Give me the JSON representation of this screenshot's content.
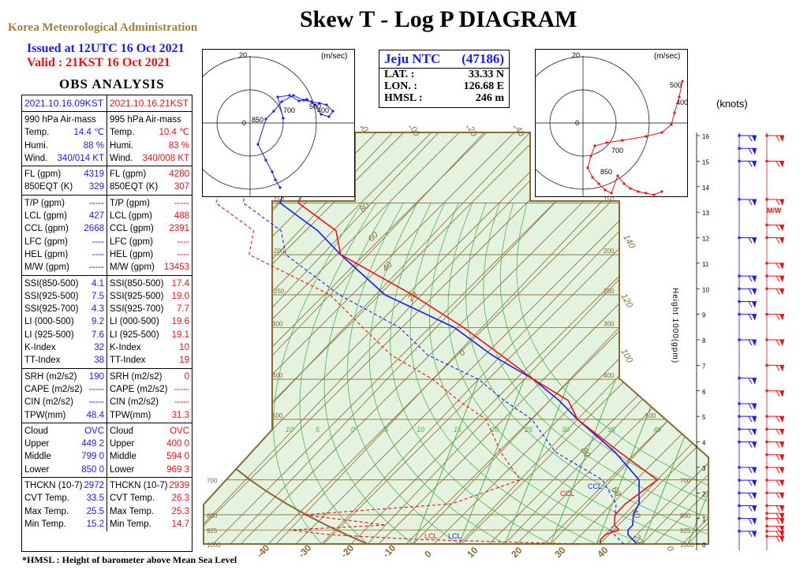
{
  "header": {
    "agency": "Korea Meteorological Administration",
    "title": "Skew T - Log P DIAGRAM",
    "issued": "Issued at 12UTC 16 Oct 2021",
    "valid": "Valid :  21KST 16 Oct 2021",
    "obs_title": "OBS  ANALYSIS",
    "footnote": "*HMSL : Height of barometer above Mean Sea Level"
  },
  "station": {
    "name": "Jeju NTC",
    "id": "(47186)",
    "rows": [
      {
        "label": "LAT.  :",
        "value": "33.33 N"
      },
      {
        "label": "LON.  :",
        "value": "126.68 E"
      },
      {
        "label": "HMSL  :",
        "value": "246 m"
      }
    ]
  },
  "obs": {
    "left": {
      "date": "2021.10.16.09KST",
      "color": "#1a1aff",
      "groups": [
        [
          [
            "990  hPa Air-mass",
            ""
          ],
          [
            "Temp.",
            "14.4 ℃"
          ],
          [
            "Humi.",
            "88  %"
          ],
          [
            "Wind.",
            "340/014 KT"
          ]
        ],
        [
          [
            "FL (gpm)",
            "4319"
          ],
          [
            "850EQT (K)",
            "329"
          ]
        ],
        [
          [
            "T/P (gpm)",
            "-----"
          ],
          [
            "LCL (gpm)",
            "427"
          ],
          [
            "CCL (gpm)",
            "2668"
          ],
          [
            "LFC (gpm)",
            "----"
          ],
          [
            "HEL (gpm)",
            "----"
          ],
          [
            "M/W (gpm)",
            "-----"
          ]
        ],
        [
          [
            "SSI(850-500)",
            "4.1"
          ],
          [
            "SSI(925-500)",
            "7.5"
          ],
          [
            "SSI(925-700)",
            "4.3"
          ],
          [
            "LI (000-500)",
            "9.2"
          ],
          [
            "LI (925-500)",
            "7.6"
          ],
          [
            "K-Index",
            "32"
          ],
          [
            "TT-Index",
            "38"
          ]
        ],
        [
          [
            "SRH (m2/s2)",
            "190"
          ],
          [
            "CAPE (m2/s2)",
            "-----"
          ],
          [
            "CIN (m2/s2)",
            "-----"
          ],
          [
            "TPW(mm)",
            "48.4"
          ]
        ],
        [
          [
            "Cloud",
            "OVC"
          ],
          [
            "Upper",
            "449    2"
          ],
          [
            "Middle",
            "799    0"
          ],
          [
            "Lower",
            "850    0"
          ]
        ],
        [
          [
            "THCKN (10-7)",
            "2972"
          ],
          [
            "CVT Temp.",
            "33.5"
          ],
          [
            "Max Temp.",
            "25.5"
          ],
          [
            "Min Temp.",
            "15.2"
          ]
        ]
      ]
    },
    "right": {
      "date": "2021.10.16.21KST",
      "color": "#ee1111",
      "groups": [
        [
          [
            "995  hPa Air-mass",
            ""
          ],
          [
            "Temp.",
            "10.4 ℃"
          ],
          [
            "Humi.",
            "83  %"
          ],
          [
            "Wind.",
            "340/008 KT"
          ]
        ],
        [
          [
            "FL (gpm)",
            "4280"
          ],
          [
            "850EQT (K)",
            "307"
          ]
        ],
        [
          [
            "T/P (gpm)",
            "-----"
          ],
          [
            "LCL (gpm)",
            "488"
          ],
          [
            "CCL (gpm)",
            "2391"
          ],
          [
            "LFC (gpm)",
            "----"
          ],
          [
            "HEL (gpm)",
            "----"
          ],
          [
            "M/W (gpm)",
            "13453"
          ]
        ],
        [
          [
            "SSI(850-500)",
            "17.4"
          ],
          [
            "SSI(925-500)",
            "19.0"
          ],
          [
            "SSI(925-700)",
            "7.7"
          ],
          [
            "LI (000-500)",
            "19.6"
          ],
          [
            "LI (925-500)",
            "19.1"
          ],
          [
            "K-Index",
            "10"
          ],
          [
            "TT-Index",
            "19"
          ]
        ],
        [
          [
            "SRH (m2/s2)",
            "0"
          ],
          [
            "CAPE (m2/s2)",
            "-----"
          ],
          [
            "CIN (m2/s2)",
            "-----"
          ],
          [
            "TPW(mm)",
            "31.3"
          ]
        ],
        [
          [
            "Cloud",
            "OVC"
          ],
          [
            "Upper",
            "400    0"
          ],
          [
            "Middle",
            "594    0"
          ],
          [
            "Lower",
            "969    3"
          ]
        ],
        [
          [
            "THCKN (10-7)",
            "2939"
          ],
          [
            "CVT Temp.",
            "26.3"
          ],
          [
            "Max Temp.",
            "25.3"
          ],
          [
            "Min Temp.",
            "14.7"
          ]
        ]
      ]
    }
  },
  "hodographs": {
    "unit": "(m/sec)",
    "ring_label": "20",
    "center_label": "0",
    "left_levels": [
      "850",
      "700",
      "500",
      "400"
    ],
    "right_levels": [
      "500",
      "400",
      "700",
      "850"
    ]
  },
  "wind_panel": {
    "unit": "(knots)",
    "height_labels": [
      "16",
      "15",
      "14",
      "13",
      "12",
      "11",
      "10",
      "9",
      "8",
      "7",
      "6",
      "5",
      "4",
      "3",
      "2",
      "1",
      "0"
    ],
    "mw_label": "M/W",
    "axis_title": "Height  1000(gpm)"
  },
  "chart_data": {
    "type": "line",
    "title": "Skew T - Log P DIAGRAM",
    "x_axis": {
      "label": "",
      "ticks": [
        -40,
        -30,
        -20,
        -10,
        0,
        10,
        20,
        30,
        40
      ]
    },
    "y_axis": {
      "label": "",
      "scale": "log",
      "pressure_ticks": [
        150,
        200,
        250,
        300,
        400,
        500,
        700,
        850,
        925,
        1000
      ]
    },
    "mixing_ratio_labels": [
      "10",
      "5",
      "0",
      "5",
      "10",
      "15",
      "20",
      "25",
      "30",
      "35",
      "40"
    ],
    "theta_labels": [
      "80",
      "60",
      "40",
      "20",
      "0"
    ],
    "adiabat_labels": [
      "140",
      "120",
      "100",
      "80",
      "60",
      "40",
      "20",
      "0"
    ],
    "top_labels": [
      "80",
      "100",
      "120",
      "140"
    ],
    "lcl_label": "LCL",
    "ccl_label": "CCL",
    "colors": {
      "obs_09": "#1a1aff",
      "obs_21": "#ee1111",
      "grid": "#8a6a33",
      "moist": "#55b055",
      "fill": "#e3f3df"
    },
    "series": [
      {
        "color": "#1a1aff",
        "style": "temperature",
        "points": [
          [
            1000,
            14.4
          ],
          [
            975,
            13.5
          ],
          [
            950,
            12.5
          ],
          [
            925,
            12
          ],
          [
            900,
            12
          ],
          [
            850,
            11
          ],
          [
            800,
            10.5
          ],
          [
            700,
            8
          ],
          [
            600,
            2.5
          ],
          [
            500,
            -5
          ],
          [
            450,
            -9
          ],
          [
            400,
            -14
          ],
          [
            350,
            -21
          ],
          [
            300,
            -28
          ],
          [
            250,
            -39
          ],
          [
            200,
            -48
          ],
          [
            175,
            -53
          ],
          [
            150,
            -60
          ],
          [
            125,
            -62
          ],
          [
            110,
            -64
          ],
          [
            100,
            -64
          ]
        ]
      },
      {
        "color": "#1a1aff",
        "style": "dewpoint",
        "points": [
          [
            1000,
            13
          ],
          [
            975,
            12
          ],
          [
            950,
            11
          ],
          [
            925,
            10
          ],
          [
            900,
            10
          ],
          [
            850,
            9
          ],
          [
            800,
            8
          ],
          [
            700,
            4
          ],
          [
            600,
            -4
          ],
          [
            500,
            -10
          ],
          [
            450,
            -15
          ],
          [
            400,
            -20
          ],
          [
            350,
            -28
          ],
          [
            300,
            -34
          ],
          [
            250,
            -44
          ],
          [
            200,
            -54
          ],
          [
            175,
            -57
          ],
          [
            150,
            -64
          ],
          [
            125,
            -67
          ],
          [
            110,
            -69
          ],
          [
            100,
            -70
          ]
        ]
      },
      {
        "color": "#ee1111",
        "style": "temperature",
        "points": [
          [
            1000,
            10.4
          ],
          [
            975,
            10
          ],
          [
            950,
            10
          ],
          [
            925,
            11
          ],
          [
            900,
            10
          ],
          [
            850,
            9
          ],
          [
            800,
            9
          ],
          [
            700,
            10
          ],
          [
            600,
            3
          ],
          [
            500,
            -5
          ],
          [
            450,
            -8
          ],
          [
            400,
            -14
          ],
          [
            350,
            -20
          ],
          [
            300,
            -27
          ],
          [
            250,
            -36
          ],
          [
            200,
            -48
          ],
          [
            175,
            -51
          ],
          [
            150,
            -58
          ],
          [
            125,
            -60
          ],
          [
            110,
            -61
          ],
          [
            100,
            -61
          ]
        ]
      },
      {
        "color": "#ee1111",
        "style": "dewpoint",
        "points": [
          [
            1000,
            8
          ],
          [
            975,
            -10
          ],
          [
            950,
            -20
          ],
          [
            925,
            -25
          ],
          [
            900,
            -15
          ],
          [
            850,
            -25
          ],
          [
            800,
            -10
          ],
          [
            700,
            -5
          ],
          [
            600,
            -10
          ],
          [
            500,
            -15
          ],
          [
            450,
            -20
          ],
          [
            400,
            -25
          ],
          [
            350,
            -32
          ],
          [
            300,
            -38
          ],
          [
            250,
            -45
          ],
          [
            200,
            -58
          ],
          [
            175,
            -60
          ],
          [
            150,
            -67
          ],
          [
            125,
            -69
          ],
          [
            110,
            -71
          ],
          [
            100,
            -71
          ]
        ]
      }
    ]
  }
}
